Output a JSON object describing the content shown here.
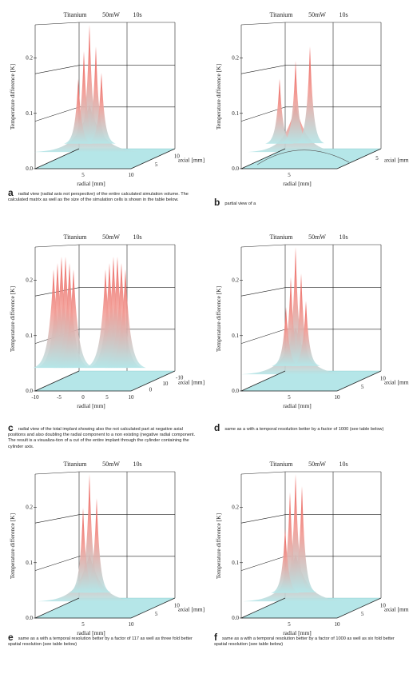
{
  "figure_header": {
    "material": "Titanium",
    "power": "50mW",
    "time": "10s"
  },
  "axis_labels": {
    "y": "Temperature difference [K]",
    "x": "radial  [mm]",
    "z": "axial [mm]"
  },
  "panels": [
    {
      "letter": "a",
      "caption": "radial view (radial axis not perspective) of the entire calculated simulation volume.  The calculated matrix as well as the size of the simulation cells is shown in the table below.",
      "y_ticks": [
        "0.0",
        "0.1",
        "0.2"
      ],
      "x_ticks": [
        "5",
        "10"
      ],
      "z_ticks": [
        "5",
        "10"
      ]
    },
    {
      "letter": "b",
      "caption": "partial view of a",
      "y_ticks": [
        "0.0",
        "0.1",
        "0.2"
      ],
      "x_ticks": [
        "5"
      ],
      "z_ticks": [
        "5"
      ]
    },
    {
      "letter": "c",
      "caption": "radial view of the total implant showing also the not calculated part at negative axial positions and also doubling the radial component to a non existing (negative radial component. The result is a visualiza-tion of a cut of the entire implant through the cylinder containing the cylinder axis.",
      "y_ticks": [
        "0.0",
        "0.1",
        "0.2"
      ],
      "x_ticks": [
        "-10",
        "-5",
        "0",
        "5",
        "10"
      ],
      "z_ticks": [
        "0",
        "10",
        "-10"
      ]
    },
    {
      "letter": "d",
      "caption": "same as a with a temporal resolution better by a factor of 1000 (see table below)",
      "y_ticks": [
        "0.0",
        "0.1",
        "0.2"
      ],
      "x_ticks": [
        "5",
        "10"
      ],
      "z_ticks": [
        "5",
        "10"
      ]
    },
    {
      "letter": "e",
      "caption": "same as a with a temporal resolution better by a factor of 117 as well as three fold better spatial resolution (see table below)",
      "y_ticks": [
        "0.0",
        "0.1",
        "0.2"
      ],
      "x_ticks": [
        "5",
        "10"
      ],
      "z_ticks": [
        "5",
        "10"
      ]
    },
    {
      "letter": "f",
      "caption": "same as a with a temporal resolution better by a factor of 1000 as well as six fold better spatial resolution (see table below)",
      "y_ticks": [
        "0.0",
        "0.1",
        "0.2"
      ],
      "x_ticks": [
        "5",
        "10"
      ],
      "z_ticks": [
        "5",
        "10"
      ]
    }
  ],
  "colors": {
    "peak": "#e8504a",
    "base": "#b5e6e8",
    "axis": "#222222"
  }
}
